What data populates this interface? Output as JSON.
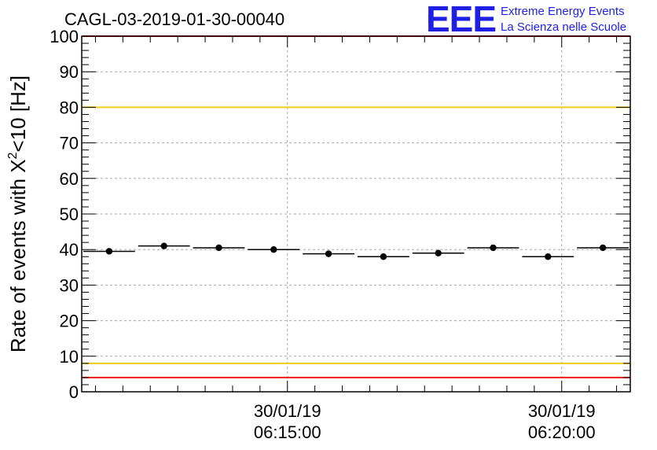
{
  "title": "CAGL-03-2019-01-30-00040",
  "logo": {
    "mark": "EEE",
    "line1": "Extreme Energy Events",
    "line2": "La Scienza nelle Scuole"
  },
  "colors": {
    "red_line": "#ee1c1c",
    "yellow_line": "#f0cc1a",
    "grid": "#a8a8a8",
    "logo": "#1f1fe6",
    "marker": "#000000"
  },
  "chart_data": {
    "type": "scatter",
    "title": "CAGL-03-2019-01-30-00040",
    "ylabel": {
      "pre": "Rate of events with X",
      "sup": "2",
      "post": "<10 [Hz]"
    },
    "xlabel": "",
    "ylim": [
      0,
      100
    ],
    "xlim_minutes": [
      11.25,
      21.25
    ],
    "yticks": [
      0,
      10,
      20,
      30,
      40,
      50,
      60,
      70,
      80,
      90,
      100
    ],
    "xticks": [
      {
        "minute": 15,
        "date": "30/01/19",
        "time": "06:15:00"
      },
      {
        "minute": 20,
        "date": "30/01/19",
        "time": "06:20:00"
      }
    ],
    "grid": true,
    "reference_lines": [
      {
        "y": 100,
        "color": "red"
      },
      {
        "y": 80,
        "color": "yellow"
      },
      {
        "y": 8,
        "color": "yellow"
      },
      {
        "y": 4,
        "color": "red"
      }
    ],
    "bin_width_minutes": 1,
    "points": [
      {
        "minute": 11.75,
        "y": 39.5
      },
      {
        "minute": 12.75,
        "y": 41.0
      },
      {
        "minute": 13.75,
        "y": 40.5
      },
      {
        "minute": 14.75,
        "y": 40.0
      },
      {
        "minute": 15.75,
        "y": 38.8
      },
      {
        "minute": 16.75,
        "y": 38.0
      },
      {
        "minute": 17.75,
        "y": 39.0
      },
      {
        "minute": 18.75,
        "y": 40.5
      },
      {
        "minute": 19.75,
        "y": 38.0
      },
      {
        "minute": 20.75,
        "y": 40.5
      }
    ]
  }
}
